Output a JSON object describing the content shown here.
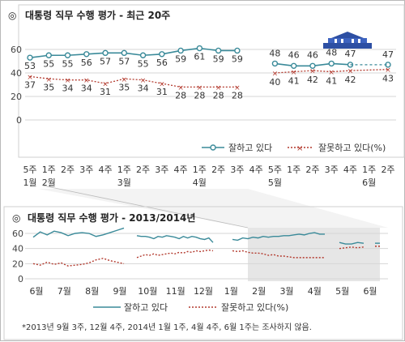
{
  "chart_data": [
    {
      "type": "line",
      "title": "대통령 직무 수행 평가 - 최근 20주",
      "title_mark": "◎",
      "ylim": [
        0,
        60
      ],
      "yticks": [
        0,
        20,
        40,
        60
      ],
      "grid": true,
      "legend_position": "bottom-right",
      "x_week_labels": [
        "5주",
        "1주",
        "2주",
        "3주",
        "4주",
        "1주",
        "2주",
        "3주",
        "4주",
        "1주",
        "2주",
        "3주",
        "4주",
        "5주",
        "1주",
        "2주",
        "3주",
        "4주",
        "1주",
        "2주"
      ],
      "x_month_labels": [
        {
          "at": 0,
          "label": "1월"
        },
        {
          "at": 1,
          "label": "2월"
        },
        {
          "at": 5,
          "label": "3월"
        },
        {
          "at": 9,
          "label": "4월"
        },
        {
          "at": 13,
          "label": "5월"
        },
        {
          "at": 18,
          "label": "6월"
        }
      ],
      "series": [
        {
          "name": "잘하고 있다",
          "color": "#3a8a99",
          "style": "solid-marker",
          "values": [
            53,
            55,
            55,
            56,
            57,
            57,
            55,
            56,
            59,
            61,
            59,
            59,
            null,
            48,
            46,
            46,
            48,
            47,
            null,
            47
          ]
        },
        {
          "name": "잘못하고 있다(%)",
          "color": "#b33a2e",
          "style": "dotted-x",
          "values": [
            37,
            35,
            34,
            34,
            31,
            35,
            34,
            31,
            28,
            28,
            28,
            28,
            null,
            40,
            41,
            42,
            41,
            42,
            null,
            43
          ]
        }
      ],
      "data_labels_top": [
        "53",
        "55",
        "55",
        "56",
        "57",
        "57",
        "55",
        "56",
        "59",
        "61",
        "59",
        "59",
        "",
        "48",
        "46",
        "46",
        "48",
        "47",
        "",
        "47"
      ],
      "data_labels_bottom": [
        "37",
        "35",
        "34",
        "34",
        "31",
        "35",
        "34",
        "31",
        "28",
        "28",
        "28",
        "28",
        "",
        "40",
        "41",
        "42",
        "41",
        "42",
        "",
        "43"
      ]
    },
    {
      "type": "line",
      "title": "대통령 직무 수행 평가 - 2013/2014년",
      "title_mark": "◎",
      "ylim": [
        0,
        60
      ],
      "yticks": [
        0,
        20,
        40,
        60
      ],
      "grid": true,
      "legend_position": "bottom",
      "x_month_labels": [
        "6월",
        "7월",
        "8월",
        "9월",
        "10월",
        "11월",
        "12월",
        "1월",
        "2월",
        "3월",
        "4월",
        "5월",
        "6월"
      ],
      "series": [
        {
          "name": "잘하고 있다",
          "color": "#3a8a99",
          "style": "solid",
          "segments": [
            [
              55,
              62,
              58,
              63,
              61,
              57,
              60,
              61,
              60,
              56,
              58,
              61,
              64,
              67
            ],
            [
              57,
              56,
              56,
              55,
              53,
              56,
              55,
              57,
              56,
              55,
              53,
              56,
              54,
              56,
              55,
              53,
              52,
              54,
              48
            ],
            [
              52,
              51,
              54,
              53,
              55,
              54,
              56,
              55,
              56,
              56,
              57,
              57,
              58,
              59,
              58,
              60,
              61,
              59,
              59
            ],
            [
              48,
              46,
              46,
              48,
              47
            ],
            [
              47
            ]
          ]
        },
        {
          "name": "잘못하고 있다(%)",
          "color": "#b33a2e",
          "style": "dotted",
          "segments": [
            [
              20,
              18,
              22,
              19,
              21,
              17,
              18,
              19,
              21,
              25,
              27,
              24,
              22,
              20
            ],
            [
              28,
              30,
              32,
              31,
              33,
              31,
              32,
              33,
              34,
              33,
              35,
              34,
              36,
              35,
              37,
              36,
              37,
              38,
              37
            ],
            [
              37,
              36,
              37,
              35,
              34,
              34,
              33,
              31,
              32,
              30,
              30,
              29,
              28,
              28,
              28,
              28,
              28,
              28,
              28
            ],
            [
              40,
              41,
              42,
              41,
              42
            ],
            [
              43
            ]
          ]
        }
      ]
    }
  ],
  "footnote": "*2013년 9월 3주, 12월 4주, 2014년 1월 1주, 4월 4주, 6월 1주는 조사하지 않음."
}
